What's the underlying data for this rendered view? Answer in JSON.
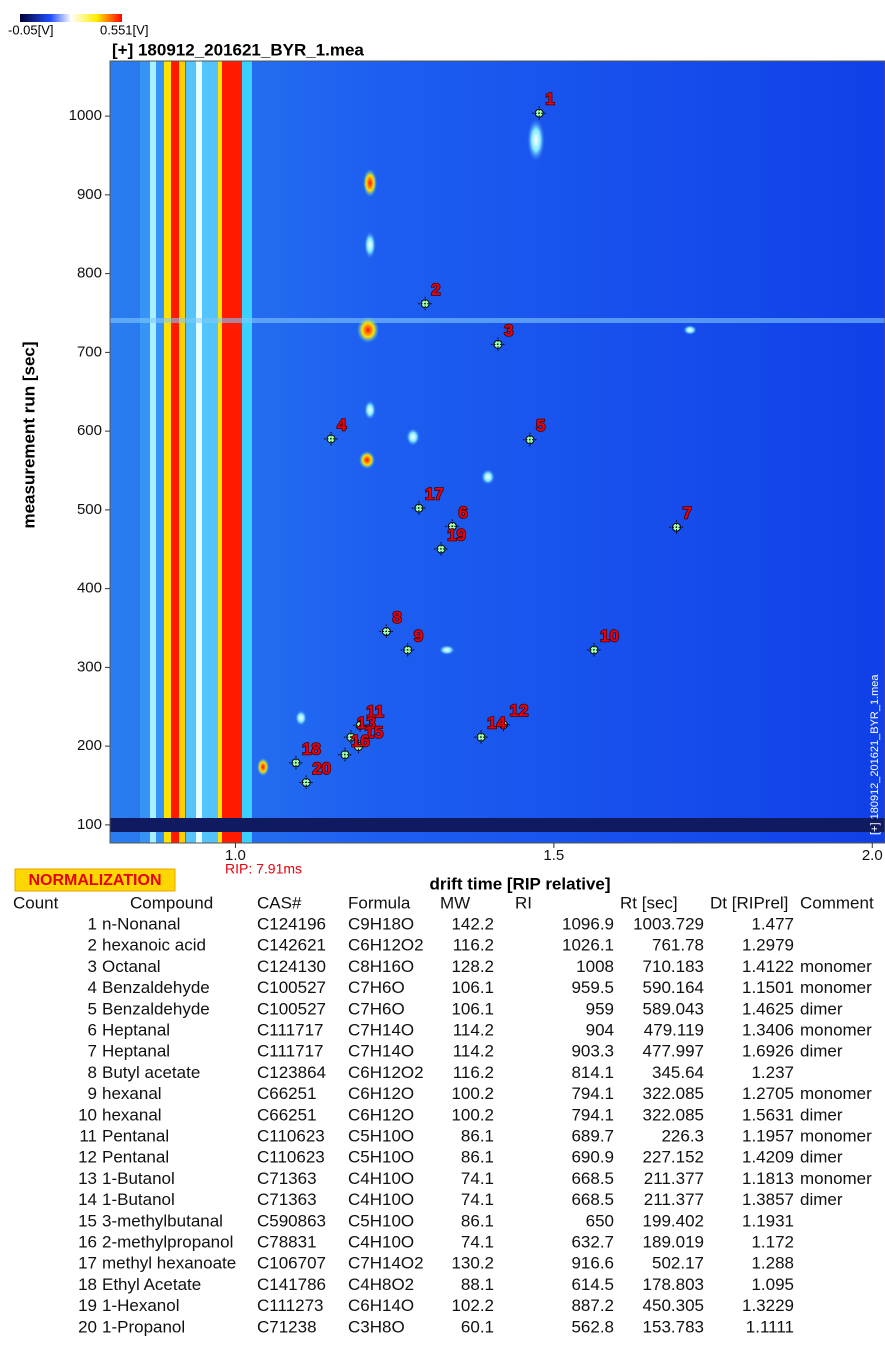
{
  "colorbar": {
    "min_label": "-0.05[V]",
    "max_label": "0.551[V]"
  },
  "plot": {
    "title": "[+] 180912_201621_BYR_1.mea",
    "x_label": "drift time [RIP relative]",
    "y_label": "measurement run [sec]",
    "rip_label": "RIP: 7.91ms",
    "xlim": [
      0.803,
      2.02
    ],
    "ylim": [
      77,
      1070
    ],
    "xticks": [
      {
        "value": 1,
        "label": "1.0"
      },
      1.5,
      {
        "value": 2,
        "label": "2.0"
      }
    ],
    "yticks": [
      100,
      200,
      300,
      400,
      500,
      600,
      700,
      800,
      900,
      1000
    ]
  },
  "normalization": "NORMALIZATION",
  "table": {
    "columns": [
      "Count",
      "Compound",
      "CAS#",
      "Formula",
      "MW",
      "RI",
      "Rt [sec]",
      "Dt [RIPrel]",
      "Comment"
    ],
    "rows": [
      [
        1,
        "n-Nonanal",
        "C124196",
        "C9H18O",
        142.2,
        1096.9,
        1003.729,
        1.477,
        null
      ],
      [
        2,
        "hexanoic acid",
        "C142621",
        "C6H12O2",
        116.2,
        1026.1,
        761.78,
        1.2979,
        null
      ],
      [
        3,
        "Octanal",
        "C124130",
        "C8H16O",
        128.2,
        1008,
        710.183,
        1.4122,
        "monomer"
      ],
      [
        4,
        "Benzaldehyde",
        "C100527",
        "C7H6O",
        106.1,
        959.5,
        590.164,
        1.1501,
        "monomer"
      ],
      [
        5,
        "Benzaldehyde",
        "C100527",
        "C7H6O",
        106.1,
        959,
        589.043,
        1.4625,
        "dimer"
      ],
      [
        6,
        "Heptanal",
        "C111717",
        "C7H14O",
        114.2,
        904,
        479.119,
        1.3406,
        "monomer"
      ],
      [
        7,
        "Heptanal",
        "C111717",
        "C7H14O",
        114.2,
        903.3,
        477.997,
        1.6926,
        "dimer"
      ],
      [
        8,
        "Butyl acetate",
        "C123864",
        "C6H12O2",
        116.2,
        814.1,
        345.64,
        1.237,
        null
      ],
      [
        9,
        "hexanal",
        "C66251",
        "C6H12O",
        100.2,
        794.1,
        322.085,
        1.2705,
        "monomer"
      ],
      [
        10,
        "hexanal",
        "C66251",
        "C6H12O",
        100.2,
        794.1,
        322.085,
        1.5631,
        "dimer"
      ],
      [
        11,
        "Pentanal",
        "C110623",
        "C5H10O",
        86.1,
        689.7,
        226.3,
        1.1957,
        "monomer"
      ],
      [
        12,
        "Pentanal",
        "C110623",
        "C5H10O",
        86.1,
        690.9,
        227.152,
        1.4209,
        "dimer"
      ],
      [
        13,
        "1-Butanol",
        "C71363",
        "C4H10O",
        74.1,
        668.5,
        211.377,
        1.1813,
        "monomer"
      ],
      [
        14,
        "1-Butanol",
        "C71363",
        "C4H10O",
        74.1,
        668.5,
        211.377,
        1.3857,
        "dimer"
      ],
      [
        15,
        "3-methylbutanal",
        "C590863",
        "C5H10O",
        86.1,
        650,
        199.402,
        1.1931,
        null
      ],
      [
        16,
        "2-methylpropanol",
        "C78831",
        "C4H10O",
        74.1,
        632.7,
        189.019,
        1.172,
        null
      ],
      [
        17,
        "methyl hexanoate",
        "C106707",
        "C7H14O2",
        130.2,
        916.6,
        502.17,
        1.288,
        null
      ],
      [
        18,
        "Ethyl Acetate",
        "C141786",
        "C4H8O2",
        88.1,
        614.5,
        178.803,
        1.095,
        null
      ],
      [
        19,
        "1-Hexanol",
        "C111273",
        "C6H14O",
        102.2,
        887.2,
        450.305,
        1.3229,
        null
      ],
      [
        20,
        "1-Propanol",
        "C71238",
        "C3H8O",
        60.1,
        562.8,
        153.783,
        1.1111,
        null
      ]
    ]
  }
}
